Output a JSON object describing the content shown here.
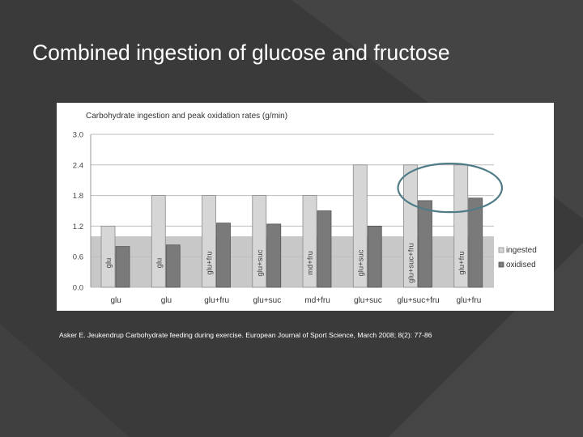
{
  "slide": {
    "title": "Combined ingestion of glucose and fructose",
    "citation": "Asker E. Jeukendrup Carbohydrate feeding during exercise. European Journal of Sport Science, March 2008; 8(2): 77-86"
  },
  "colors": {
    "background": "#3a3a3a",
    "ingested": "#d6d6d6",
    "oxidised": "#7a7a7a",
    "highlight_band": "#c8c8c8",
    "ellipse": "#4f7b86"
  },
  "chart_data": {
    "type": "bar",
    "title": "Carbohydrate ingestion and peak oxidation rates (g/min)",
    "categories": [
      "glu",
      "glu",
      "glu+fru",
      "glu+suc",
      "md+fru",
      "glu+suc",
      "glu+suc+fru",
      "glu+fru"
    ],
    "bar_labels": [
      "glu",
      "glu",
      "glu+fru",
      "glu+suc",
      "md+fru",
      "glu+suc",
      "glu+suc+fru",
      "glu+fru"
    ],
    "series": [
      {
        "name": "ingested",
        "values": [
          1.2,
          1.8,
          1.8,
          1.8,
          1.8,
          2.4,
          2.4,
          2.4
        ]
      },
      {
        "name": "oxidised",
        "values": [
          0.8,
          0.83,
          1.26,
          1.24,
          1.5,
          1.2,
          1.7,
          1.75
        ]
      }
    ],
    "ylim": [
      0,
      3.0
    ],
    "yticks": [
      "0.0",
      "0.6",
      "1.2",
      "1.8",
      "2.4",
      "3.0"
    ],
    "shaded_band": [
      0,
      1.0
    ],
    "highlighted_categories": [
      6,
      7
    ],
    "legend_placement": "right",
    "grid": true
  }
}
